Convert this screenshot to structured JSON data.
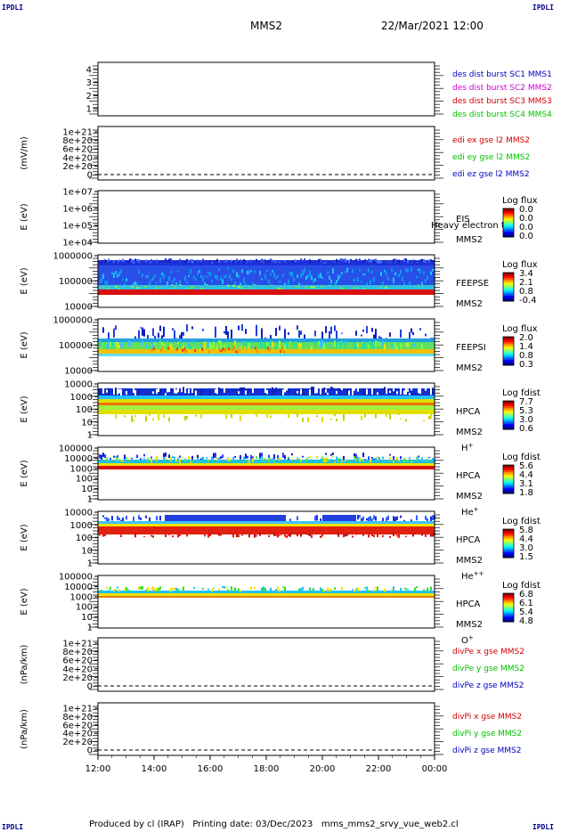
{
  "corner_label": "IPDLI",
  "header": {
    "spacecraft": "MMS2",
    "date_time": "22/Mar/2021 12:00"
  },
  "footer": {
    "text": "Produced by cl (IRAP)   Printing date: 03/Dec/2023   mms_mms2_srvy_vue_web2.cl"
  },
  "x_axis": {
    "ticks": [
      "12:00",
      "14:00",
      "16:00",
      "18:00",
      "20:00",
      "22:00",
      "00:00"
    ]
  },
  "colors": {
    "red": "#d40000",
    "green": "#00c000",
    "blue": "#0000c0",
    "magenta": "#d000d0"
  },
  "chart_data": [
    {
      "type": "line",
      "panel": "burst",
      "yticks": [
        "1",
        "2",
        "3",
        "4"
      ],
      "ylim": [
        0.5,
        4.5
      ],
      "legend": [
        {
          "text": "des dist burst SC1 MMS1",
          "color": "blue"
        },
        {
          "text": "des dist burst SC2 MMS2",
          "color": "magenta"
        },
        {
          "text": "des dist burst SC3 MMS3",
          "color": "red"
        },
        {
          "text": "des dist burst SC4 MMS4",
          "color": "green"
        }
      ],
      "series": []
    },
    {
      "type": "line",
      "panel": "edi",
      "ylabel": "(mV/m)",
      "yticks": [
        "0",
        "2e+20",
        "4e+20",
        "6e+20",
        "8e+20",
        "1e+21"
      ],
      "legend": [
        {
          "text": "edi ex gse l2 MMS2",
          "color": "red"
        },
        {
          "text": "edi ey gse l2 MMS2",
          "color": "green"
        },
        {
          "text": "edi ez gse l2 MMS2",
          "color": "blue"
        }
      ],
      "series": []
    },
    {
      "type": "heatmap",
      "panel": "eis",
      "ylabel": "E (eV)",
      "yticks": [
        "1e+04",
        "1e+05",
        "1e+06",
        "1e+07"
      ],
      "labels": [
        "EIS",
        "MMS2"
      ],
      "overlay_text": "Heavy electron to",
      "colorbar": {
        "title": "Log flux",
        "ticks": [
          "0.0",
          "0.0",
          "0.0",
          "0.0"
        ]
      },
      "content": "empty"
    },
    {
      "type": "heatmap",
      "panel": "feepse",
      "ylabel": "E (eV)",
      "yticks": [
        "10000",
        "100000",
        "1000000"
      ],
      "labels": [
        "FEEPSE",
        "MMS2"
      ],
      "colorbar": {
        "title": "Log flux",
        "ticks": [
          "3.4",
          "2.1",
          "0.8",
          "-0.4"
        ]
      }
    },
    {
      "type": "heatmap",
      "panel": "feepsi",
      "ylabel": "E (eV)",
      "yticks": [
        "10000",
        "100000",
        "1000000"
      ],
      "labels": [
        "FEEPSI",
        "MMS2"
      ],
      "colorbar": {
        "title": "Log flux",
        "ticks": [
          "2.0",
          "1.4",
          "0.8",
          "0.3"
        ]
      }
    },
    {
      "type": "heatmap",
      "panel": "hpca_h",
      "ylabel": "E (eV)",
      "yticks": [
        "1",
        "10",
        "100",
        "1000",
        "10000"
      ],
      "labels": [
        "HPCA",
        "MMS2"
      ],
      "species": "H",
      "species_sup": "+",
      "colorbar": {
        "title": "Log fdist",
        "ticks": [
          "7.7",
          "5.3",
          "3.0",
          "0.6"
        ]
      }
    },
    {
      "type": "heatmap",
      "panel": "hpca_he",
      "ylabel": "E (eV)",
      "yticks": [
        "1",
        "10",
        "100",
        "1000",
        "10000",
        "100000"
      ],
      "labels": [
        "HPCA",
        "MMS2"
      ],
      "species": "He",
      "species_sup": "+",
      "colorbar": {
        "title": "Log fdist",
        "ticks": [
          "5.6",
          "4.4",
          "3.1",
          "1.8"
        ]
      }
    },
    {
      "type": "heatmap",
      "panel": "hpca_hepp",
      "ylabel": "E (eV)",
      "yticks": [
        "1",
        "10",
        "100",
        "1000",
        "10000"
      ],
      "labels": [
        "HPCA",
        "MMS2"
      ],
      "species": "He",
      "species_sup": "++",
      "colorbar": {
        "title": "Log fdist",
        "ticks": [
          "5.8",
          "4.4",
          "3.0",
          "1.5"
        ]
      }
    },
    {
      "type": "heatmap",
      "panel": "hpca_o",
      "ylabel": "E (eV)",
      "yticks": [
        "1",
        "10",
        "100",
        "1000",
        "10000",
        "100000"
      ],
      "labels": [
        "HPCA",
        "MMS2"
      ],
      "species": "O",
      "species_sup": "+",
      "colorbar": {
        "title": "Log fdist",
        "ticks": [
          "6.8",
          "6.1",
          "5.4",
          "4.8"
        ]
      }
    },
    {
      "type": "line",
      "panel": "divpe",
      "ylabel": "(nPa/km)",
      "yticks": [
        "0",
        "2e+20",
        "4e+20",
        "6e+20",
        "8e+20",
        "1e+21"
      ],
      "legend": [
        {
          "text": "divPe x gse MMS2",
          "color": "red"
        },
        {
          "text": "divPe y gse MMS2",
          "color": "green"
        },
        {
          "text": "divPe z gse MMS2",
          "color": "blue"
        }
      ],
      "series": []
    },
    {
      "type": "line",
      "panel": "divpi",
      "ylabel": "(nPa/km)",
      "yticks": [
        "0",
        "2e+20",
        "4e+20",
        "6e+20",
        "8e+20",
        "1e+21"
      ],
      "legend": [
        {
          "text": "divPi x gse MMS2",
          "color": "red"
        },
        {
          "text": "divPi y gse MMS2",
          "color": "green"
        },
        {
          "text": "divPi z gse MMS2",
          "color": "blue"
        }
      ],
      "series": []
    }
  ]
}
